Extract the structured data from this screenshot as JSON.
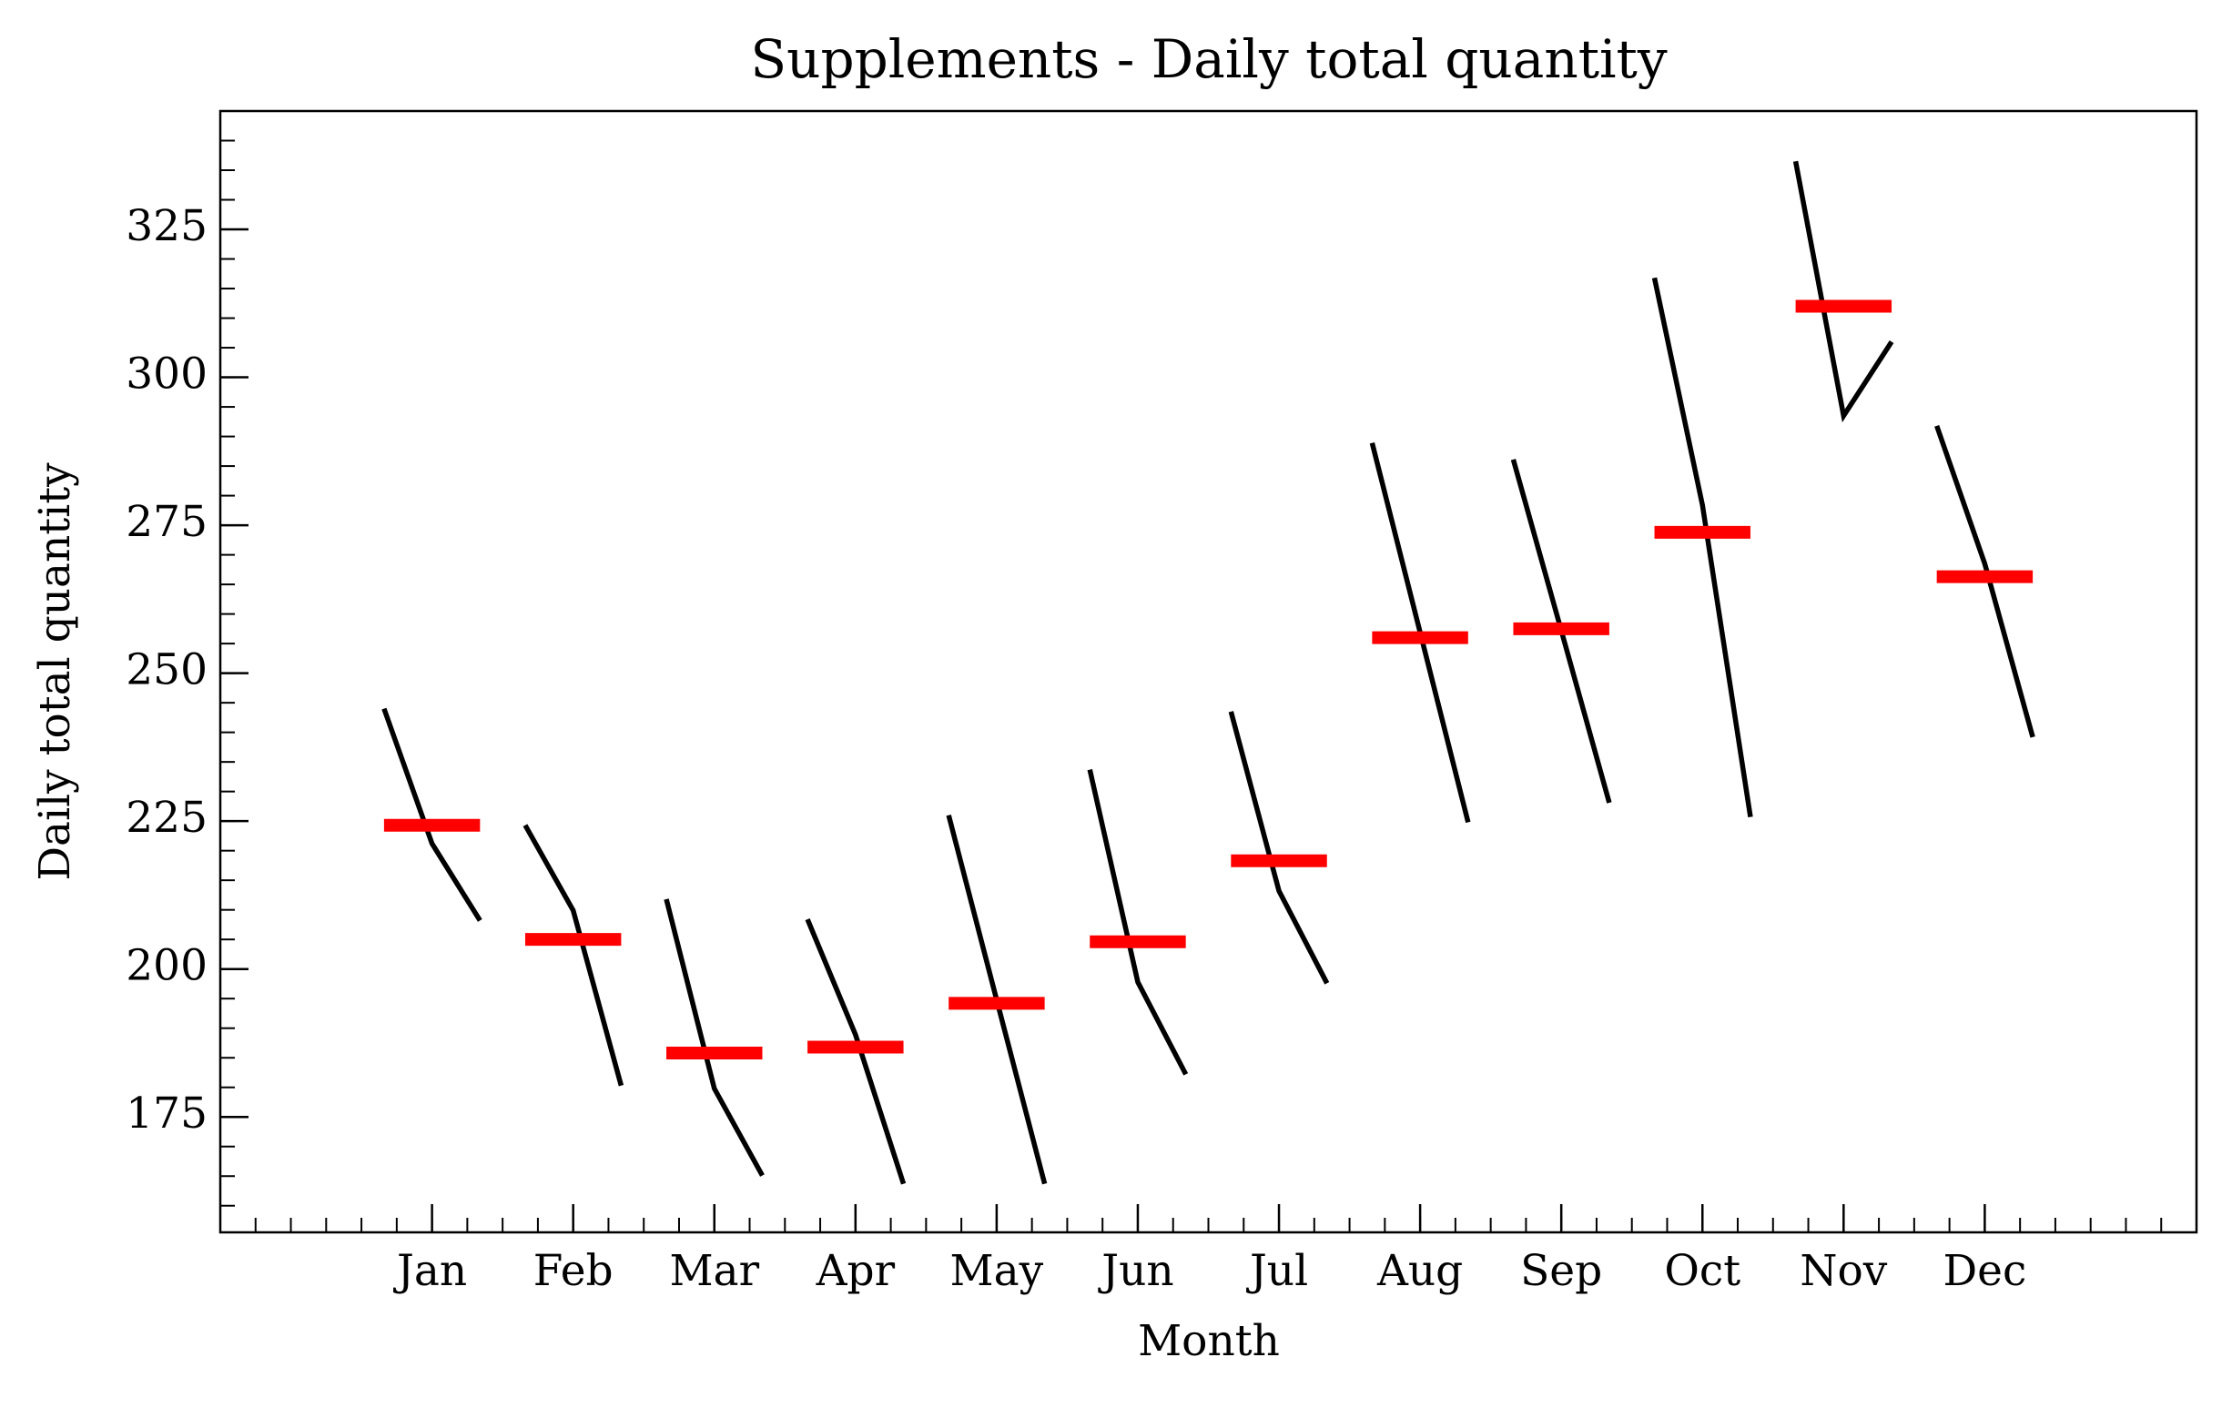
{
  "chart_data": {
    "type": "monthplot",
    "title": "Supplements - Daily total quantity",
    "xlabel": "Month",
    "ylabel": "Daily total quantity",
    "categories": [
      "Jan",
      "Feb",
      "Mar",
      "Apr",
      "May",
      "Jun",
      "Jul",
      "Aug",
      "Sep",
      "Oct",
      "Nov",
      "Dec"
    ],
    "values": [
      [
        244.0,
        221.2,
        208.2
      ],
      [
        224.3,
        209.9,
        180.3
      ],
      [
        211.8,
        179.8,
        165.1
      ],
      [
        208.4,
        188.9,
        163.7
      ],
      [
        226.0,
        194.8,
        163.7
      ],
      [
        233.7,
        197.8,
        182.2
      ],
      [
        243.5,
        213.2,
        197.6
      ],
      [
        288.9,
        256.9,
        224.8
      ],
      [
        286.1,
        257.2,
        228.1
      ],
      [
        316.8,
        278.4,
        225.7
      ],
      [
        336.5,
        293.5,
        306.0
      ],
      [
        291.8,
        268.5,
        239.2
      ]
    ],
    "means": [
      224.3,
      205.0,
      185.8,
      186.8,
      194.2,
      204.6,
      218.3,
      256.0,
      257.5,
      273.8,
      312.0,
      266.3
    ],
    "line_color": "#000000",
    "mean_color": "#ff0000",
    "xlim": [
      -1.5,
      12.5
    ],
    "xminor_step": 0.25,
    "ylim": [
      155.5,
      345
    ],
    "yticks": [
      175,
      200,
      225,
      250,
      275,
      300,
      325
    ],
    "yminor_step": 5
  }
}
